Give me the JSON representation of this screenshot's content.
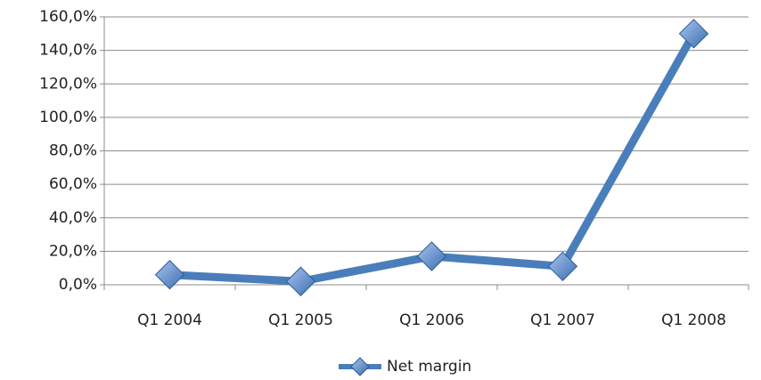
{
  "chart_data": {
    "type": "line",
    "categories": [
      "Q1 2004",
      "Q1 2005",
      "Q1 2006",
      "Q1 2007",
      "Q1 2008"
    ],
    "series": [
      {
        "name": "Net margin",
        "color": "#4a7ebb",
        "values": [
          6,
          2,
          17,
          11,
          150
        ]
      }
    ],
    "ylim": [
      0,
      160
    ],
    "yticks": [
      {
        "value": 0,
        "label": "0,0%"
      },
      {
        "value": 20,
        "label": "20,0%"
      },
      {
        "value": 40,
        "label": "40,0%"
      },
      {
        "value": 60,
        "label": "60,0%"
      },
      {
        "value": 80,
        "label": "80,0%"
      },
      {
        "value": 100,
        "label": "100,0%"
      },
      {
        "value": 120,
        "label": "120,0%"
      },
      {
        "value": 140,
        "label": "140,0%"
      },
      {
        "value": 160,
        "label": "160,0%"
      }
    ],
    "grid": true,
    "legend": "bottom"
  }
}
